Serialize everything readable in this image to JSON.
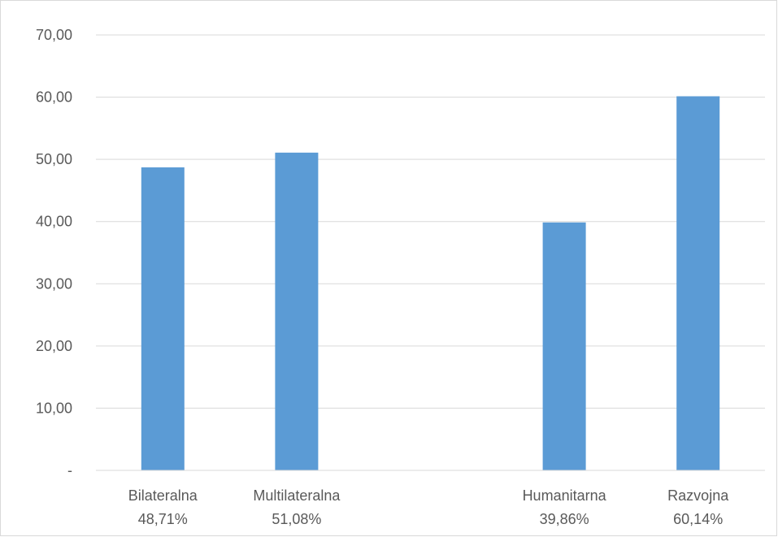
{
  "chart_data": {
    "type": "bar",
    "title": "",
    "xlabel": "",
    "ylabel": "",
    "ylim": [
      0,
      70
    ],
    "yticks": [
      {
        "value": 0,
        "label": "-"
      },
      {
        "value": 10,
        "label": "10,00"
      },
      {
        "value": 20,
        "label": "20,00"
      },
      {
        "value": 30,
        "label": "30,00"
      },
      {
        "value": 40,
        "label": "40,00"
      },
      {
        "value": 50,
        "label": "50,00"
      },
      {
        "value": 60,
        "label": "60,00"
      },
      {
        "value": 70,
        "label": "70,00"
      }
    ],
    "grid": true,
    "legend": "none",
    "bar_color": "#5b9bd5",
    "grid_color": "#d9d9d9",
    "categories": [
      {
        "name": "Bilateralna",
        "pct_label": "48,71%",
        "value": 48.71
      },
      {
        "name": "Multilateralna",
        "pct_label": "51,08%",
        "value": 51.08
      },
      {
        "name": "",
        "pct_label": "",
        "value": null
      },
      {
        "name": "Humanitarna",
        "pct_label": "39,86%",
        "value": 39.86
      },
      {
        "name": "Razvojna",
        "pct_label": "60,14%",
        "value": 60.14
      }
    ]
  }
}
